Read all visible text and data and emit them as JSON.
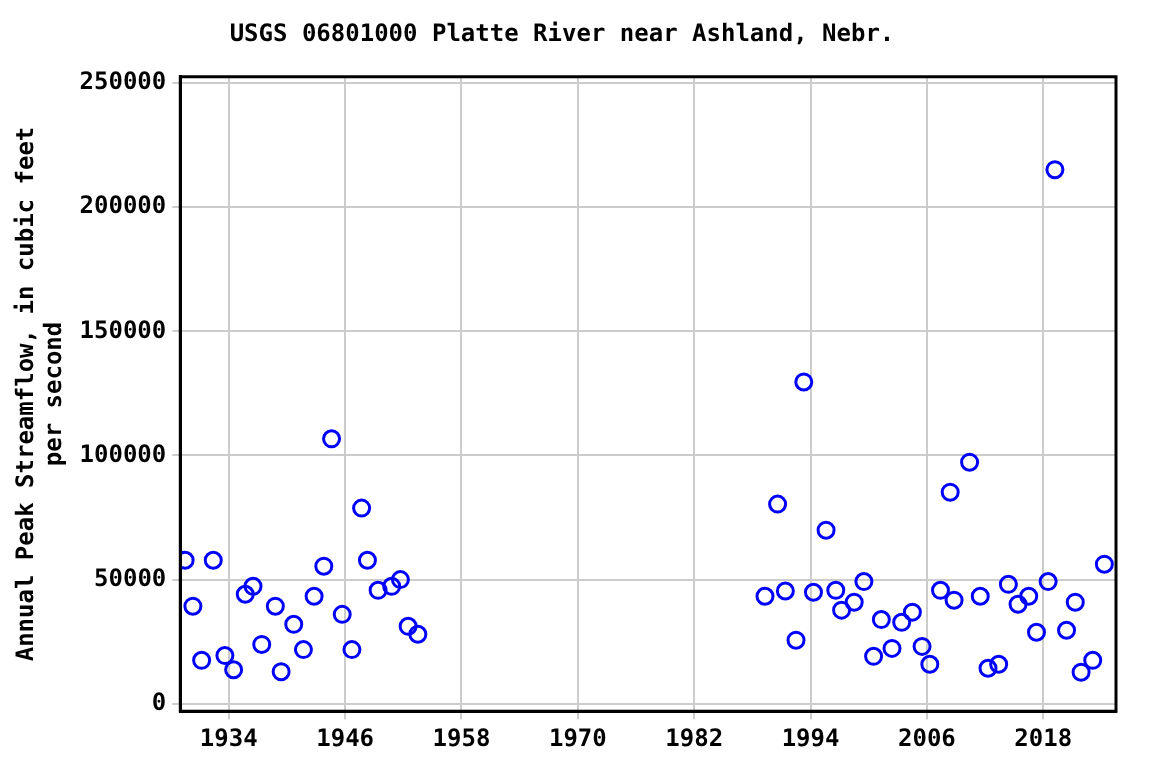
{
  "chart_data": {
    "type": "scatter",
    "title": "USGS 06801000 Platte River near Ashland, Nebr.",
    "ylabel": "Annual Peak Streamflow, in cubic feet per second",
    "series": [
      {
        "color": "#0000ff",
        "x": [
          1929.5,
          1930.3,
          1931.2,
          1932.4,
          1933.6,
          1934.5,
          1935.7,
          1936.5,
          1937.4,
          1938.8,
          1939.4,
          1940.7,
          1941.7,
          1942.8,
          1943.8,
          1944.6,
          1945.7,
          1946.7,
          1947.7,
          1948.3,
          1949.4,
          1950.8,
          1951.7,
          1952.5,
          1953.5,
          1989.3,
          1990.6,
          1991.4,
          1992.5,
          1993.3,
          1994.3,
          1995.6,
          1996.6,
          1997.2,
          1998.5,
          1999.5,
          2000.5,
          2001.3,
          2002.4,
          2003.4,
          2004.5,
          2005.5,
          2006.3,
          2007.4,
          2008.4,
          2008.8,
          2010.4,
          2011.5,
          2012.3,
          2013.4,
          2014.4,
          2015.4,
          2016.5,
          2017.3,
          2018.5,
          2019.2,
          2020.4,
          2021.3,
          2021.9,
          2023.1,
          2024.3
        ],
        "values": [
          57800,
          39300,
          17500,
          57800,
          19400,
          13700,
          44100,
          47300,
          23900,
          39300,
          12900,
          32000,
          21800,
          43300,
          55400,
          106700,
          36000,
          21800,
          78800,
          57800,
          45700,
          47300,
          50000,
          31200,
          28000,
          43300,
          80400,
          45400,
          25600,
          129600,
          44900,
          69900,
          45700,
          37700,
          40900,
          49200,
          19100,
          33900,
          22300,
          32800,
          36900,
          23100,
          15900,
          45700,
          85200,
          41700,
          97300,
          43300,
          14300,
          15900,
          48100,
          40100,
          43300,
          28800,
          49200,
          215100,
          29600,
          40900,
          12700,
          17500,
          56200
        ]
      }
    ],
    "xlim": [
      1929,
      2025.5
    ],
    "ylim": [
      -3000,
      252500
    ],
    "xticks": [
      1934,
      1946,
      1958,
      1970,
      1982,
      1994,
      2006,
      2018
    ],
    "yticks": [
      0,
      50000,
      100000,
      150000,
      200000,
      250000
    ],
    "grid": true,
    "marker": "circle",
    "legend": false
  }
}
